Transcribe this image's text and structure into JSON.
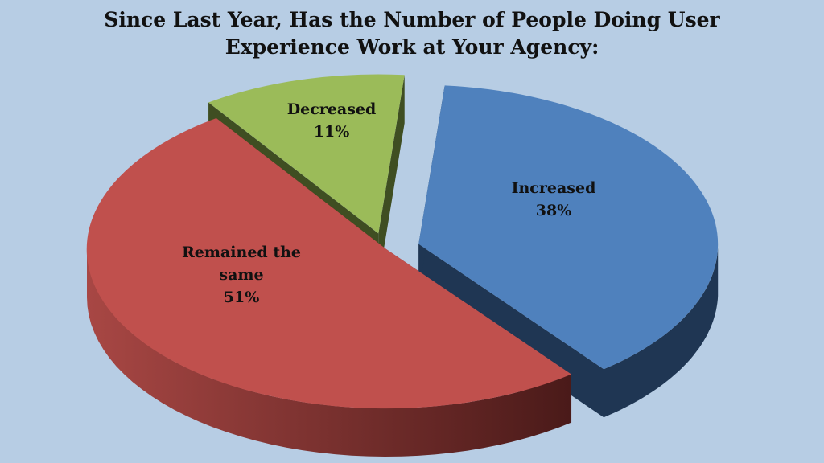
{
  "chart_data": {
    "type": "pie",
    "title_lines": [
      "Since Last Year, Has the Number of People Doing User",
      "Experience Work at Your Agency:"
    ],
    "slices": [
      {
        "label_lines": [
          "Increased"
        ],
        "value": 38,
        "value_label": "38%",
        "color": "#4f81bd",
        "side_color": "#1f3653"
      },
      {
        "label_lines": [
          "Remained the",
          "same"
        ],
        "value": 51,
        "value_label": "51%",
        "color": "#c0504d",
        "side_color": "#6e2826"
      },
      {
        "label_lines": [
          "Decreased"
        ],
        "value": 11,
        "value_label": "11%",
        "color": "#9bbb59",
        "side_color": "#3f4e22"
      }
    ],
    "exploded": true,
    "legend": "none"
  }
}
